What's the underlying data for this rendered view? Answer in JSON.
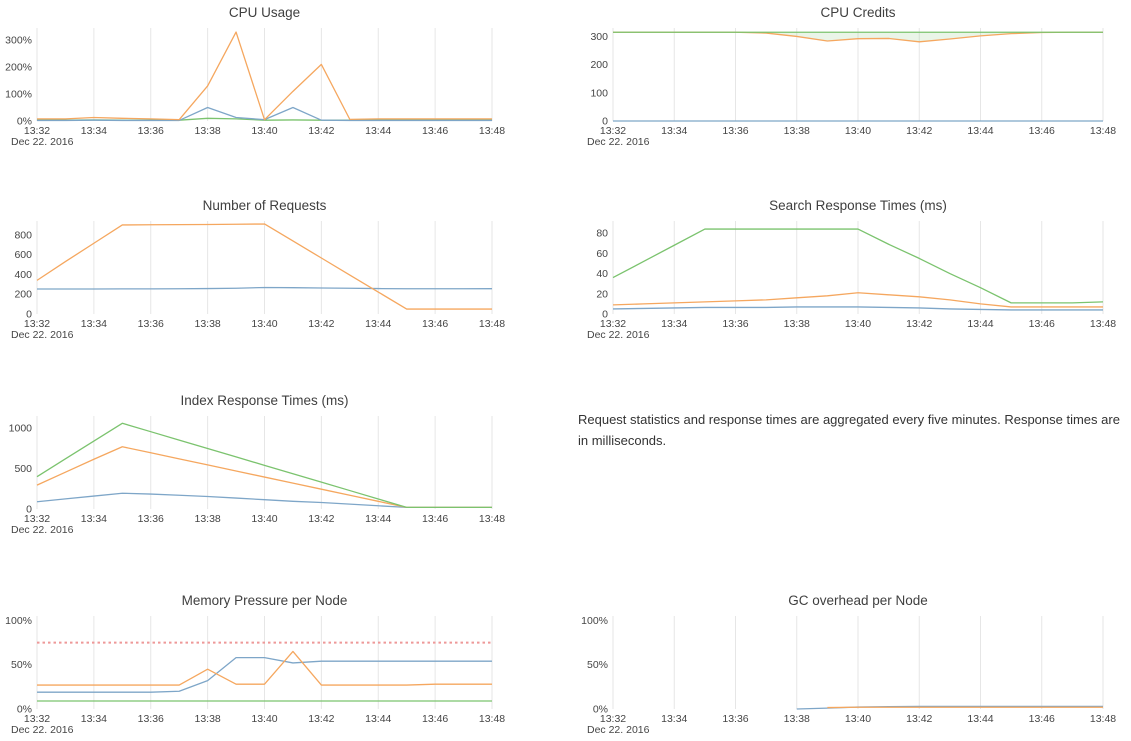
{
  "page": {
    "background": "#ffffff"
  },
  "colors": {
    "blue": "#7ea6c8",
    "orange": "#f5a75f",
    "green": "#7bc36e",
    "red": "#ee9898",
    "grid": "#e6e6e6",
    "axis_text": "#454545",
    "title_text": "#3f3f3f",
    "note_text": "#333333",
    "credits_fill": "rgba(123,195,110,0.16)"
  },
  "x_axis": {
    "ticks": [
      "13:32",
      "13:34",
      "13:36",
      "13:38",
      "13:40",
      "13:42",
      "13:44",
      "13:46",
      "13:48"
    ],
    "tick_minutes": [
      0,
      2,
      4,
      6,
      8,
      10,
      12,
      14,
      16
    ],
    "range_minutes": [
      0,
      16
    ],
    "date_label": "Dec 22. 2016"
  },
  "note": {
    "text": "Request statistics and response times are aggregated every five minutes. Response times are in milliseconds."
  },
  "chart_data": [
    {
      "id": "cpu-usage",
      "type": "line",
      "title": "CPU Usage",
      "ylim": [
        0,
        345
      ],
      "grid": "vertical",
      "legend": "none",
      "y_ticks": [
        {
          "value": 0,
          "label": "0%"
        },
        {
          "value": 100,
          "label": "100%"
        },
        {
          "value": 200,
          "label": "200%"
        },
        {
          "value": 300,
          "label": "300%"
        }
      ],
      "series": [
        {
          "name": "green",
          "color": "green",
          "x": [
            0,
            1,
            2,
            3,
            4,
            5,
            6,
            7,
            8,
            9,
            10,
            11,
            12,
            13,
            14,
            15,
            16
          ],
          "y": [
            3,
            3,
            4,
            3,
            3,
            3,
            10,
            8,
            3,
            4,
            3,
            3,
            3,
            3,
            3,
            3,
            3
          ]
        },
        {
          "name": "blue",
          "color": "blue",
          "x": [
            0,
            1,
            2,
            3,
            4,
            5,
            6,
            7,
            8,
            9,
            10,
            11,
            12,
            13,
            14,
            15,
            16
          ],
          "y": [
            2,
            2,
            3,
            2,
            2,
            2,
            50,
            13,
            5,
            50,
            3,
            2,
            2,
            2,
            2,
            2,
            2
          ]
        },
        {
          "name": "orange",
          "color": "orange",
          "x": [
            0,
            1,
            2,
            3,
            4,
            5,
            6,
            7,
            8,
            9,
            10,
            11,
            12,
            13,
            14,
            15,
            16
          ],
          "y": [
            8,
            8,
            13,
            10,
            8,
            5,
            130,
            330,
            5,
            110,
            210,
            6,
            8,
            8,
            8,
            8,
            8
          ]
        }
      ]
    },
    {
      "id": "cpu-credits",
      "type": "line",
      "title": "CPU Credits",
      "ylim": [
        0,
        330
      ],
      "grid": "vertical",
      "legend": "none",
      "y_ticks": [
        {
          "value": 0,
          "label": "0"
        },
        {
          "value": 100,
          "label": "100"
        },
        {
          "value": 200,
          "label": "200"
        },
        {
          "value": 300,
          "label": "300"
        }
      ],
      "fill_between": {
        "series_a": "green",
        "series_b": "orange",
        "color": "credits_fill"
      },
      "series": [
        {
          "name": "blue",
          "color": "blue",
          "x": [
            0,
            1,
            2,
            3,
            4,
            5,
            6,
            7,
            8,
            9,
            10,
            11,
            12,
            13,
            14,
            15,
            16
          ],
          "y": [
            0,
            0,
            0,
            0,
            0,
            0,
            0,
            0,
            0,
            0,
            0,
            0,
            0,
            0,
            0,
            0,
            0
          ]
        },
        {
          "name": "orange",
          "color": "orange",
          "x": [
            0,
            1,
            2,
            3,
            4,
            5,
            6,
            7,
            8,
            9,
            10,
            11,
            12,
            13,
            14,
            15,
            16
          ],
          "y": [
            315,
            315,
            315,
            315,
            315,
            312,
            300,
            284,
            292,
            293,
            281,
            291,
            302,
            310,
            314,
            315,
            315
          ]
        },
        {
          "name": "green",
          "color": "green",
          "x": [
            0,
            1,
            2,
            3,
            4,
            5,
            6,
            7,
            8,
            9,
            10,
            11,
            12,
            13,
            14,
            15,
            16
          ],
          "y": [
            315,
            315,
            315,
            315,
            315,
            315,
            315,
            315,
            315,
            315,
            315,
            315,
            315,
            315,
            315,
            315,
            315
          ]
        }
      ]
    },
    {
      "id": "number-of-requests",
      "type": "line",
      "title": "Number of Requests",
      "ylim": [
        0,
        940
      ],
      "grid": "vertical",
      "legend": "none",
      "y_ticks": [
        {
          "value": 0,
          "label": "0"
        },
        {
          "value": 200,
          "label": "200"
        },
        {
          "value": 400,
          "label": "400"
        },
        {
          "value": 600,
          "label": "600"
        },
        {
          "value": 800,
          "label": "800"
        }
      ],
      "series": [
        {
          "name": "blue",
          "color": "blue",
          "x": [
            0,
            1,
            2,
            3,
            4,
            5,
            6,
            7,
            8,
            9,
            10,
            11,
            12,
            13,
            14,
            15,
            16
          ],
          "y": [
            253,
            253,
            253,
            254,
            254,
            255,
            257,
            260,
            268,
            266,
            263,
            260,
            257,
            255,
            255,
            255,
            256
          ]
        },
        {
          "name": "orange",
          "color": "orange",
          "x": [
            0,
            1,
            2,
            3,
            4,
            5,
            6,
            7,
            8,
            9,
            10,
            11,
            12,
            13,
            14,
            15,
            16
          ],
          "y": [
            340,
            530,
            715,
            900,
            902,
            903,
            905,
            907,
            910,
            738,
            566,
            394,
            222,
            50,
            50,
            50,
            50
          ]
        }
      ]
    },
    {
      "id": "search-response-times",
      "type": "line",
      "title": "Search Response Times (ms)",
      "ylim": [
        0,
        92
      ],
      "grid": "vertical",
      "legend": "none",
      "y_ticks": [
        {
          "value": 0,
          "label": "0"
        },
        {
          "value": 20,
          "label": "20"
        },
        {
          "value": 40,
          "label": "40"
        },
        {
          "value": 60,
          "label": "60"
        },
        {
          "value": 80,
          "label": "80"
        }
      ],
      "series": [
        {
          "name": "blue",
          "color": "blue",
          "x": [
            0,
            1,
            2,
            3,
            4,
            5,
            6,
            7,
            8,
            9,
            10,
            11,
            12,
            13,
            14,
            15,
            16
          ],
          "y": [
            5,
            5.5,
            6,
            6.5,
            6.5,
            6.5,
            7,
            7,
            7,
            6.5,
            6,
            5,
            4.5,
            4,
            4,
            4,
            4
          ]
        },
        {
          "name": "orange",
          "color": "orange",
          "x": [
            0,
            1,
            2,
            3,
            4,
            5,
            6,
            7,
            8,
            9,
            10,
            11,
            12,
            13,
            14,
            15,
            16
          ],
          "y": [
            9,
            10,
            11,
            12,
            13,
            14,
            16,
            18,
            21,
            19,
            17,
            14,
            10,
            7,
            7,
            7,
            7
          ]
        },
        {
          "name": "green",
          "color": "green",
          "x": [
            0,
            1,
            2,
            3,
            4,
            5,
            6,
            7,
            8,
            9,
            10,
            11,
            12,
            13,
            14,
            15,
            16
          ],
          "y": [
            36,
            52,
            68,
            84,
            84,
            84,
            84,
            84,
            84,
            69,
            55,
            40,
            26,
            11,
            11,
            11,
            12
          ]
        }
      ]
    },
    {
      "id": "index-response-times",
      "type": "line",
      "title": "Index Response Times (ms)",
      "ylim": [
        0,
        1150
      ],
      "grid": "vertical",
      "legend": "none",
      "y_ticks": [
        {
          "value": 0,
          "label": "0"
        },
        {
          "value": 500,
          "label": "500"
        },
        {
          "value": 1000,
          "label": "1000"
        }
      ],
      "series": [
        {
          "name": "blue",
          "color": "blue",
          "x": [
            0,
            1,
            2,
            3,
            4,
            5,
            6,
            7,
            8,
            9,
            10,
            11,
            12,
            13,
            14,
            15,
            16
          ],
          "y": [
            90,
            125,
            160,
            195,
            185,
            170,
            155,
            135,
            115,
            95,
            80,
            60,
            40,
            20,
            20,
            20,
            20
          ]
        },
        {
          "name": "orange",
          "color": "orange",
          "x": [
            0,
            1,
            2,
            3,
            4,
            5,
            6,
            7,
            8,
            9,
            10,
            11,
            12,
            13,
            14,
            15,
            16
          ],
          "y": [
            295,
            455,
            615,
            770,
            695,
            620,
            545,
            470,
            395,
            320,
            245,
            170,
            95,
            20,
            20,
            20,
            20
          ]
        },
        {
          "name": "green",
          "color": "green",
          "x": [
            0,
            1,
            2,
            3,
            4,
            5,
            6,
            7,
            8,
            9,
            10,
            11,
            12,
            13,
            14,
            15,
            16
          ],
          "y": [
            400,
            620,
            840,
            1060,
            956,
            852,
            748,
            644,
            540,
            436,
            332,
            228,
            124,
            20,
            20,
            20,
            20
          ]
        }
      ]
    },
    {
      "id": "memory-pressure",
      "type": "line",
      "title": "Memory Pressure per Node",
      "ylim": [
        0,
        105
      ],
      "grid": "vertical",
      "legend": "none",
      "y_ticks": [
        {
          "value": 0,
          "label": "0%"
        },
        {
          "value": 50,
          "label": "50%"
        },
        {
          "value": 100,
          "label": "100%"
        }
      ],
      "threshold": {
        "value": 75,
        "style": "dashed",
        "color": "red"
      },
      "series": [
        {
          "name": "threshold",
          "color": "red",
          "style": "dashed",
          "width": 2,
          "x": [
            0,
            16
          ],
          "y": [
            75,
            75
          ]
        },
        {
          "name": "green",
          "color": "green",
          "x": [
            0,
            1,
            2,
            3,
            4,
            5,
            6,
            7,
            8,
            9,
            10,
            11,
            12,
            13,
            14,
            15,
            16
          ],
          "y": [
            9,
            9,
            9,
            9,
            9,
            9,
            9,
            9,
            9,
            9,
            9,
            9,
            9,
            9,
            9,
            9,
            9
          ]
        },
        {
          "name": "blue",
          "color": "blue",
          "x": [
            0,
            1,
            2,
            3,
            4,
            5,
            6,
            7,
            8,
            9,
            10,
            11,
            12,
            13,
            14,
            15,
            16
          ],
          "y": [
            19,
            19,
            19,
            19,
            19,
            20,
            32,
            58,
            58,
            52,
            54,
            54,
            54,
            54,
            54,
            54,
            54
          ]
        },
        {
          "name": "orange",
          "color": "orange",
          "x": [
            0,
            1,
            2,
            3,
            4,
            5,
            6,
            7,
            8,
            9,
            10,
            11,
            12,
            13,
            14,
            15,
            16
          ],
          "y": [
            27,
            27,
            27,
            27,
            27,
            27,
            45,
            28,
            28,
            65,
            27,
            27,
            27,
            27,
            28,
            28,
            28
          ]
        }
      ]
    },
    {
      "id": "gc-overhead",
      "type": "line",
      "title": "GC overhead per Node",
      "ylim": [
        0,
        105
      ],
      "grid": "vertical",
      "legend": "none",
      "y_ticks": [
        {
          "value": 0,
          "label": "0%"
        },
        {
          "value": 50,
          "label": "50%"
        },
        {
          "value": 100,
          "label": "100%"
        }
      ],
      "series": [
        {
          "name": "blue",
          "color": "blue",
          "x": [
            6,
            7,
            8,
            9,
            10,
            11,
            12,
            13,
            14,
            15,
            16
          ],
          "y": [
            0,
            1,
            2.2,
            2.6,
            3,
            3,
            3,
            3,
            3,
            3,
            3
          ]
        },
        {
          "name": "orange",
          "color": "orange",
          "x": [
            7,
            8,
            9,
            10,
            11,
            12,
            13,
            14,
            15,
            16
          ],
          "y": [
            1.6,
            2,
            2,
            2,
            2,
            2,
            2,
            2,
            2,
            2
          ]
        }
      ]
    }
  ]
}
